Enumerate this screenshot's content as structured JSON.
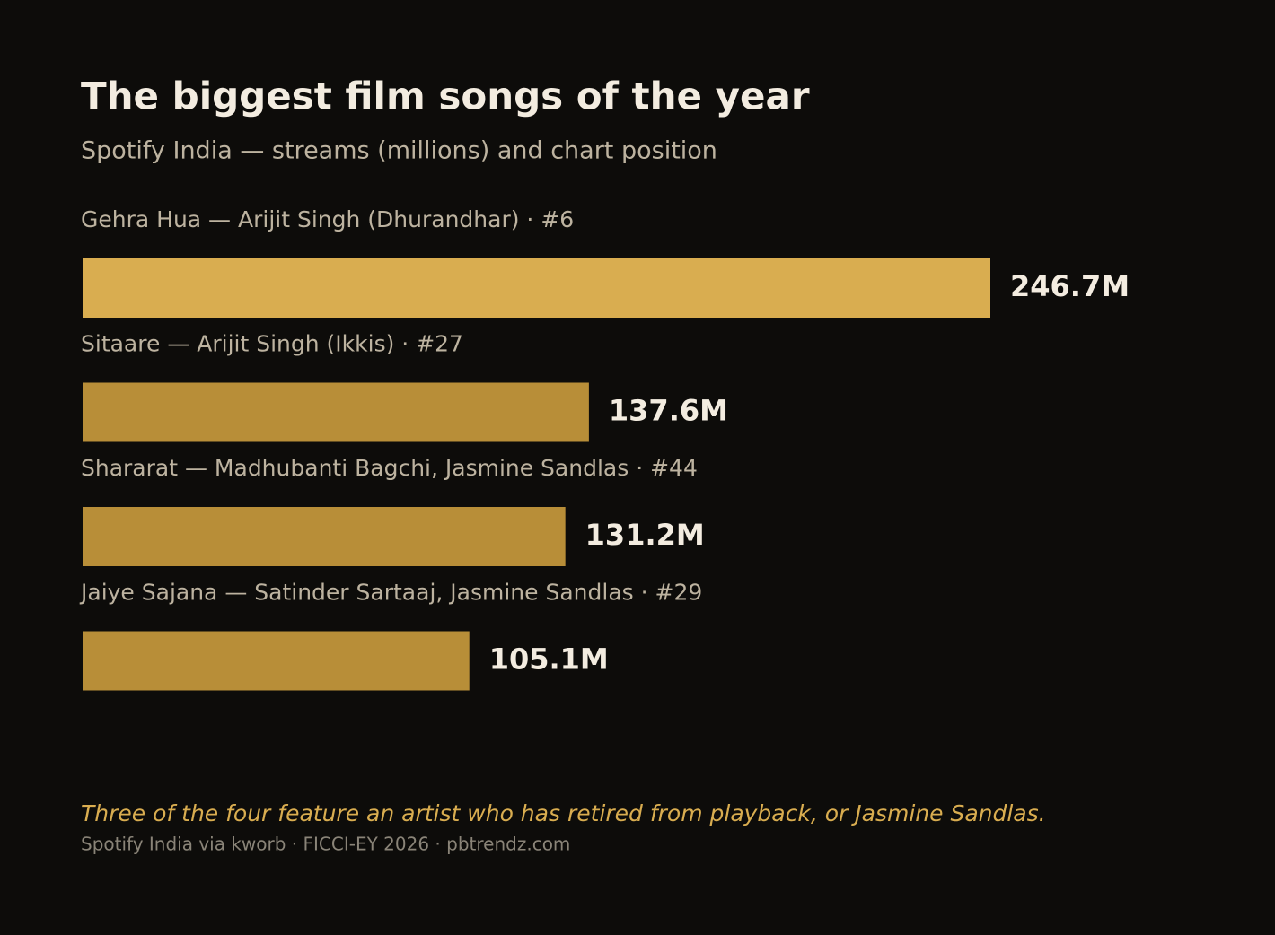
{
  "chart_data": {
    "type": "bar",
    "orientation": "horizontal",
    "title": "The biggest film songs of the year",
    "subtitle": "Spotify India — streams (millions) and chart position",
    "categories": [
      "Gehra Hua — Arijit Singh (Dhurandhar) · #6",
      "Sitaare — Arijit Singh (Ikkis) · #27",
      "Shararat — Madhubanti Bagchi, Jasmine Sandlas · #44",
      "Jaiye Sajana — Satinder Sartaaj, Jasmine Sandlas · #29"
    ],
    "values": [
      246.7,
      137.6,
      131.2,
      105.1
    ],
    "value_labels": [
      "246.7M",
      "137.6M",
      "131.2M",
      "105.1M"
    ],
    "colors": [
      "#d9ad50",
      "#b88e38",
      "#b88e38",
      "#b88e38"
    ],
    "annotation": "Three of the four feature an artist who has retired from playback, or Jasmine Sandlas.",
    "source": "Spotify India via kworb · FICCI-EY 2026 · pbtrendz.com"
  }
}
